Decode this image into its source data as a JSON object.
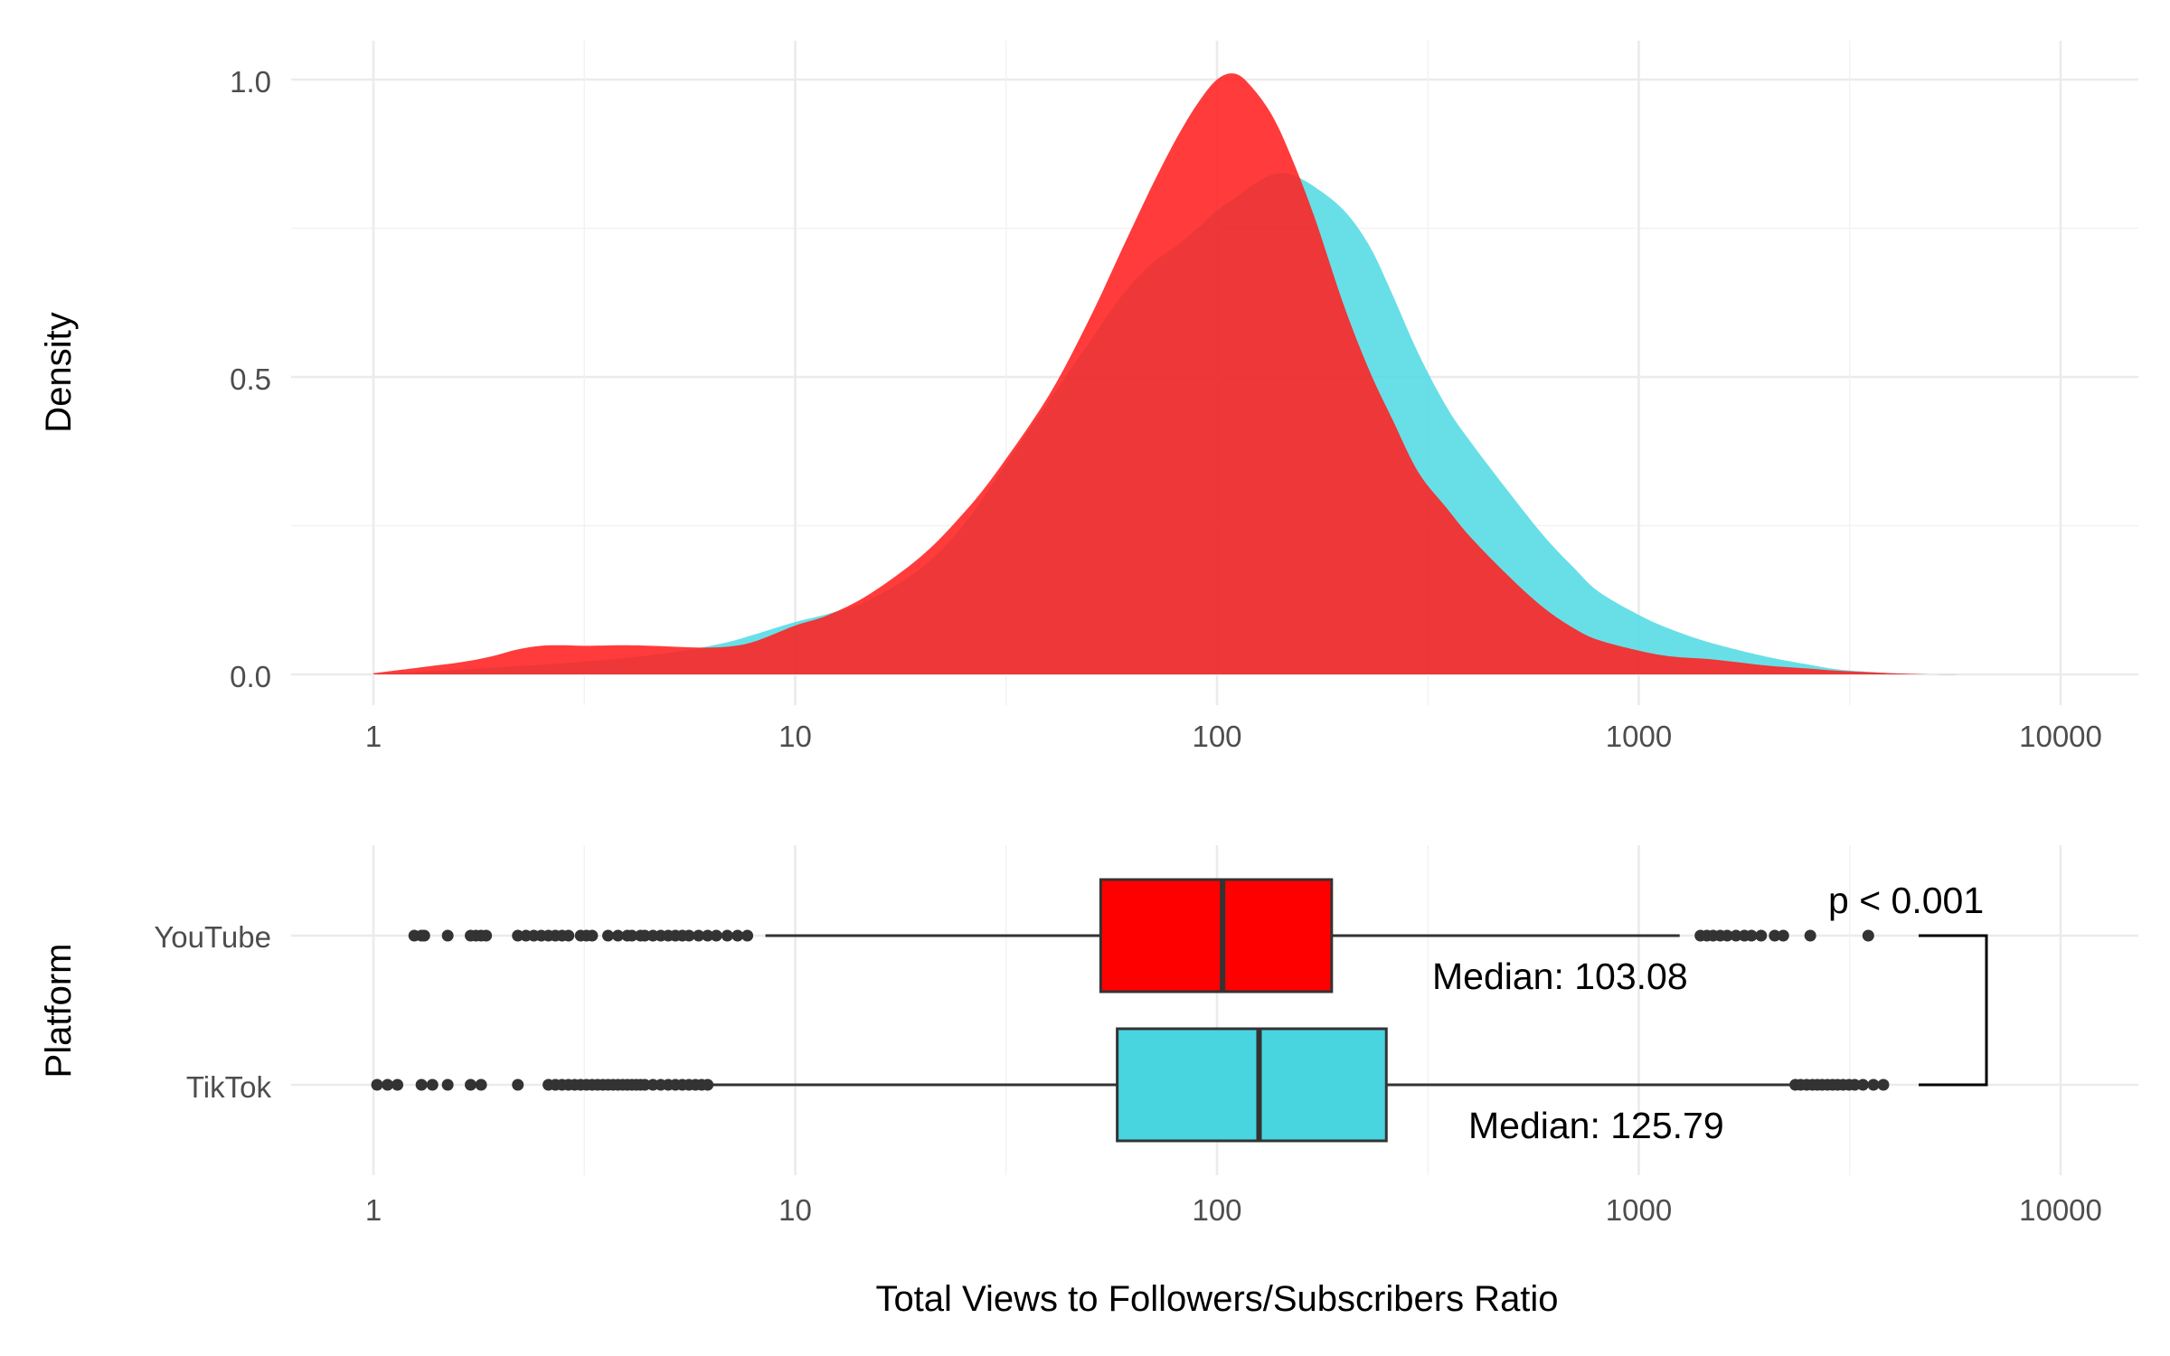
{
  "chart_data": [
    {
      "type": "area",
      "panel": "density",
      "x_scale": "log10",
      "xlim": [
        1,
        10000
      ],
      "x_ticks": [
        "1",
        "10",
        "100",
        "1000",
        "10000"
      ],
      "y_ticks": [
        "0.0",
        "0.5",
        "1.0"
      ],
      "ylim": [
        0,
        1.05
      ],
      "ylabel": "Density",
      "xlabel": "",
      "grid": true,
      "series": [
        {
          "name": "TikTok",
          "color": "#4DD9E3",
          "x": [
            1,
            2,
            3,
            4,
            5,
            6,
            7,
            8,
            10,
            12,
            15,
            20,
            25,
            30,
            40,
            50,
            60,
            70,
            80,
            90,
            100,
            110,
            120,
            135,
            150,
            170,
            200,
            230,
            260,
            300,
            350,
            400,
            500,
            600,
            700,
            800,
            1000,
            1200,
            1500,
            2000,
            2500,
            3000,
            4000,
            5000,
            6000
          ],
          "values": [
            0.0,
            0.012,
            0.02,
            0.028,
            0.036,
            0.045,
            0.055,
            0.067,
            0.088,
            0.102,
            0.125,
            0.18,
            0.25,
            0.33,
            0.46,
            0.56,
            0.64,
            0.69,
            0.72,
            0.75,
            0.78,
            0.8,
            0.82,
            0.84,
            0.84,
            0.82,
            0.78,
            0.72,
            0.64,
            0.54,
            0.45,
            0.39,
            0.3,
            0.23,
            0.18,
            0.14,
            0.1,
            0.075,
            0.052,
            0.03,
            0.017,
            0.008,
            0.002,
            0.0,
            0.0
          ]
        },
        {
          "name": "YouTube",
          "color": "#FF2020",
          "x": [
            1,
            1.3,
            1.6,
            1.9,
            2.2,
            2.5,
            2.8,
            3.2,
            4,
            5,
            6,
            7,
            8,
            10,
            12,
            15,
            20,
            25,
            30,
            40,
            50,
            60,
            70,
            80,
            90,
            100,
            110,
            120,
            135,
            150,
            170,
            200,
            230,
            260,
            300,
            350,
            400,
            500,
            600,
            700,
            800,
            1000,
            1200,
            1500,
            2000,
            2500,
            3000,
            4000,
            5000,
            6000
          ],
          "values": [
            0.002,
            0.012,
            0.02,
            0.03,
            0.042,
            0.048,
            0.049,
            0.048,
            0.049,
            0.047,
            0.045,
            0.047,
            0.055,
            0.082,
            0.1,
            0.135,
            0.2,
            0.27,
            0.34,
            0.47,
            0.6,
            0.72,
            0.82,
            0.9,
            0.96,
            1.0,
            1.01,
            0.99,
            0.94,
            0.87,
            0.77,
            0.62,
            0.51,
            0.43,
            0.34,
            0.28,
            0.23,
            0.16,
            0.11,
            0.078,
            0.058,
            0.04,
            0.03,
            0.025,
            0.015,
            0.01,
            0.006,
            0.002,
            0.0,
            0.0
          ]
        }
      ]
    },
    {
      "type": "box",
      "panel": "boxplot",
      "orientation": "horizontal",
      "x_scale": "log10",
      "xlim": [
        1,
        10000
      ],
      "x_ticks": [
        "1",
        "10",
        "100",
        "1000",
        "10000"
      ],
      "xlabel": "Total Views to Followers/Subscribers Ratio",
      "ylabel": "Platform",
      "categories": [
        "YouTube",
        "TikTok"
      ],
      "series": [
        {
          "name": "YouTube",
          "color": "#FF0000",
          "q1": 53,
          "median": 103.08,
          "q3": 187,
          "whisker_low": 8.5,
          "whisker_high": 1250,
          "outliers": [
            1.25,
            1.3,
            1.32,
            1.5,
            1.7,
            1.75,
            1.8,
            1.85,
            2.2,
            2.3,
            2.4,
            2.5,
            2.6,
            2.7,
            2.8,
            2.9,
            3.1,
            3.2,
            3.3,
            3.6,
            3.8,
            4.0,
            4.1,
            4.3,
            4.4,
            4.6,
            4.8,
            5.0,
            5.2,
            5.4,
            5.6,
            5.9,
            6.2,
            6.5,
            6.9,
            7.3,
            7.7,
            1400,
            1450,
            1500,
            1560,
            1620,
            1700,
            1780,
            1850,
            1950,
            2100,
            2200,
            2550,
            3500
          ]
        },
        {
          "name": "TikTok",
          "color": "#48D5DF",
          "q1": 58,
          "median": 125.79,
          "q3": 252,
          "whisker_low": 6.3,
          "whisker_high": 2300,
          "outliers": [
            1.02,
            1.08,
            1.14,
            1.3,
            1.38,
            1.5,
            1.7,
            1.8,
            2.2,
            2.6,
            2.7,
            2.8,
            2.9,
            3.0,
            3.1,
            3.2,
            3.3,
            3.4,
            3.5,
            3.6,
            3.7,
            3.8,
            3.9,
            4.0,
            4.1,
            4.2,
            4.3,
            4.4,
            4.6,
            4.8,
            5.0,
            5.2,
            5.4,
            5.6,
            5.8,
            6.0,
            6.2,
            2350,
            2420,
            2500,
            2580,
            2650,
            2720,
            2800,
            2880,
            2960,
            3050,
            3150,
            3250,
            3400,
            3600,
            3800
          ]
        }
      ],
      "annotations": {
        "youtube_median": "Median: 103.08",
        "tiktok_median": "Median: 125.79",
        "p_value": "p < 0.001"
      }
    }
  ]
}
